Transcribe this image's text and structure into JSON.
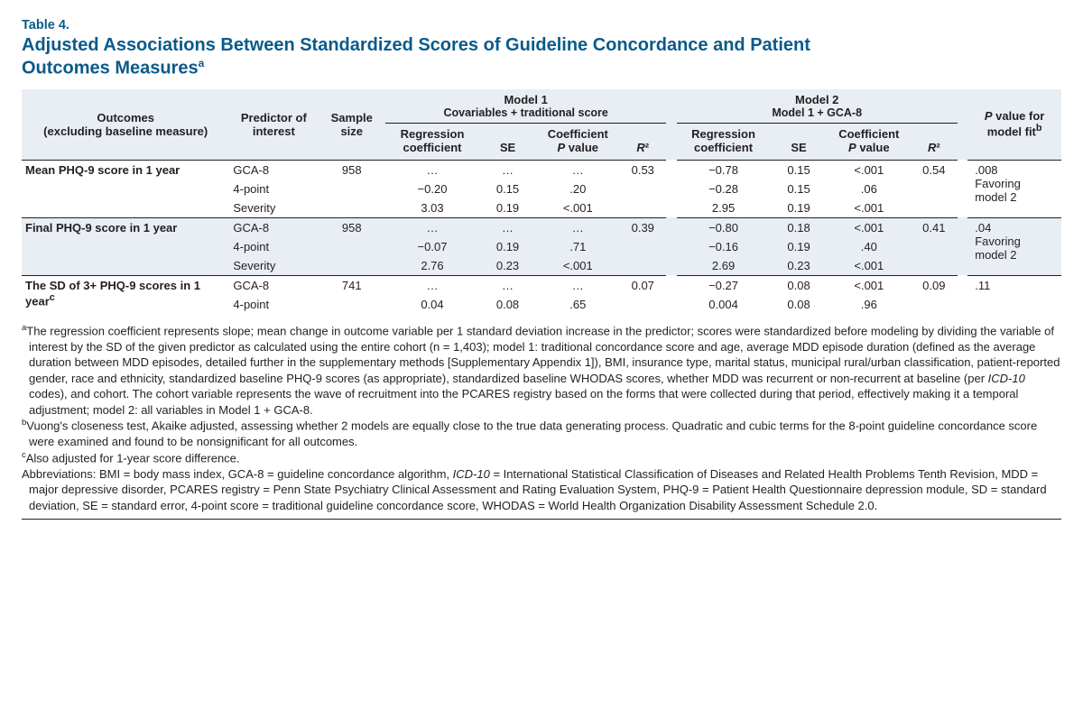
{
  "header": {
    "table_number": "Table 4.",
    "title_line1": "Adjusted Associations Between Standardized Scores of Guideline Concordance and Patient",
    "title_line2": "Outcomes Measures",
    "title_sup": "a"
  },
  "colors": {
    "header_blue": "#0a5a8a",
    "band_bg": "#e8eef3",
    "rule": "#231f20",
    "text": "#231f20",
    "background": "#ffffff"
  },
  "columns": {
    "outcomes_label": "Outcomes\n(excluding baseline measure)",
    "predictor_label": "Predictor of\ninterest",
    "sample_label": "Sample\nsize",
    "model1_title": "Model 1",
    "model1_sub": "Covariables + traditional score",
    "model2_title": "Model 2",
    "model2_sub": "Model 1 + GCA-8",
    "reg_coef": "Regression\ncoefficient",
    "se": "SE",
    "coef_p": "Coefficient\nP value",
    "r2": "R²",
    "fit_label": "P value for\nmodel fit",
    "fit_sup": "b"
  },
  "table": {
    "groups": [
      {
        "outcome": "Mean PHQ-9 score in 1 year",
        "shade": false,
        "sample": "958",
        "m1_r2": "0.53",
        "m2_r2": "0.54",
        "fit": ".008\nFavoring\nmodel 2",
        "rows": [
          {
            "predictor": "GCA-8",
            "m1_rc": "…",
            "m1_se": "…",
            "m1_p": "…",
            "m2_rc": "−0.78",
            "m2_se": "0.15",
            "m2_p": "<.001"
          },
          {
            "predictor": "4-point",
            "m1_rc": "−0.20",
            "m1_se": "0.15",
            "m1_p": ".20",
            "m2_rc": "−0.28",
            "m2_se": "0.15",
            "m2_p": ".06"
          },
          {
            "predictor": "Severity",
            "m1_rc": "3.03",
            "m1_se": "0.19",
            "m1_p": "<.001",
            "m2_rc": "2.95",
            "m2_se": "0.19",
            "m2_p": "<.001"
          }
        ]
      },
      {
        "outcome": "Final PHQ-9 score in 1 year",
        "shade": true,
        "sample": "958",
        "m1_r2": "0.39",
        "m2_r2": "0.41",
        "fit": ".04\nFavoring\nmodel 2",
        "rows": [
          {
            "predictor": "GCA-8",
            "m1_rc": "…",
            "m1_se": "…",
            "m1_p": "…",
            "m2_rc": "−0.80",
            "m2_se": "0.18",
            "m2_p": "<.001"
          },
          {
            "predictor": "4-point",
            "m1_rc": "−0.07",
            "m1_se": "0.19",
            "m1_p": ".71",
            "m2_rc": "−0.16",
            "m2_se": "0.19",
            "m2_p": ".40"
          },
          {
            "predictor": "Severity",
            "m1_rc": "2.76",
            "m1_se": "0.23",
            "m1_p": "<.001",
            "m2_rc": "2.69",
            "m2_se": "0.23",
            "m2_p": "<.001"
          }
        ]
      },
      {
        "outcome": "The SD of 3+ PHQ-9 scores in 1 year",
        "outcome_sup": "c",
        "shade": false,
        "sample": "741",
        "m1_r2": "0.07",
        "m2_r2": "0.09",
        "fit": ".11",
        "rows": [
          {
            "predictor": "GCA-8",
            "m1_rc": "…",
            "m1_se": "…",
            "m1_p": "…",
            "m2_rc": "−0.27",
            "m2_se": "0.08",
            "m2_p": "<.001"
          },
          {
            "predictor": "4-point",
            "m1_rc": "0.04",
            "m1_se": "0.08",
            "m1_p": ".65",
            "m2_rc": "0.004",
            "m2_se": "0.08",
            "m2_p": ".96"
          }
        ]
      }
    ]
  },
  "footnotes": {
    "a": "The regression coefficient represents slope; mean change in outcome variable per 1 standard deviation increase in the predictor; scores were standardized before modeling by dividing the variable of interest by the SD of the given predictor as calculated using the entire cohort (n = 1,403); model 1: traditional concordance score and age, average MDD episode duration (defined as the average duration between MDD episodes, detailed further in the supplementary methods [Supplementary Appendix 1]), BMI, insurance type, marital status, municipal rural/urban classification, patient-reported gender, race and ethnicity, standardized baseline PHQ-9 scores (as appropriate), standardized baseline WHODAS scores, whether MDD was recurrent or non-recurrent at baseline (per ICD-10 codes), and cohort. The cohort variable represents the wave of recruitment into the PCARES registry based on the forms that were collected during that period, effectively making it a temporal adjustment; model 2: all variables in Model 1 + GCA-8.",
    "b": "Vuong's closeness test, Akaike adjusted, assessing whether 2 models are equally close to the true data generating process. Quadratic and cubic terms for the 8-point guideline concordance score were examined and found to be nonsignificant for all outcomes.",
    "c": "Also adjusted for 1-year score difference.",
    "abbrev": "Abbreviations: BMI = body mass index, GCA-8 = guideline concordance algorithm, ICD-10 = International Statistical Classification of Diseases and Related Health Problems Tenth Revision, MDD = major depressive disorder, PCARES registry = Penn State Psychiatry Clinical Assessment and Rating Evaluation System, PHQ-9 = Patient Health Questionnaire depression module, SD = standard deviation, SE = standard error, 4-point score = traditional guideline concordance score, WHODAS = World Health Organization Disability Assessment Schedule 2.0."
  }
}
